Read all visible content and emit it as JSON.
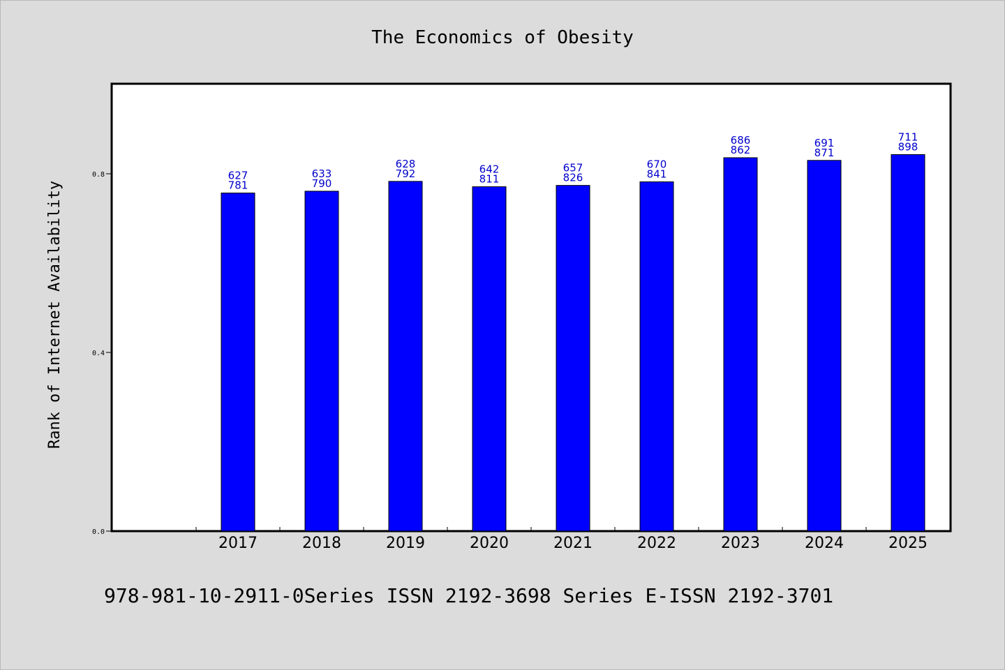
{
  "chart_data": {
    "type": "bar",
    "title": "The Economics of Obesity",
    "ylabel": "Rank of Internet Availability",
    "xlabel": "",
    "categories": [
      "2017",
      "2018",
      "2019",
      "2020",
      "2021",
      "2022",
      "2023",
      "2024",
      "2025"
    ],
    "values": [
      0.757,
      0.761,
      0.783,
      0.771,
      0.774,
      0.782,
      0.836,
      0.83,
      0.843
    ],
    "data_labels": [
      [
        "627",
        "781"
      ],
      [
        "633",
        "790"
      ],
      [
        "628",
        "792"
      ],
      [
        "642",
        "811"
      ],
      [
        "657",
        "826"
      ],
      [
        "670",
        "841"
      ],
      [
        "686",
        "862"
      ],
      [
        "691",
        "871"
      ],
      [
        "711",
        "898"
      ]
    ],
    "yticks": [
      0.0,
      0.4,
      0.8
    ],
    "ytick_labels": [
      "0.0",
      "0.4",
      "0.8"
    ],
    "ylim": [
      0,
      1.0
    ],
    "grid": false,
    "legend": "none",
    "bar_color": "#0000ff",
    "label_color": "#0000cc",
    "plot_background": "#ffffff",
    "figure_background": "#dcdcdc"
  },
  "footer": {
    "text": "978-981-10-2911-0Series ISSN 2192-3698 Series E-ISSN 2192-3701"
  }
}
